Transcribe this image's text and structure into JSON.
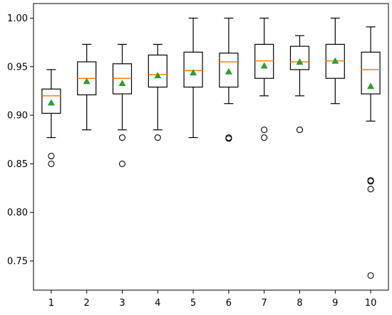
{
  "chart_data": {
    "type": "box",
    "title": "",
    "xlabel": "",
    "ylabel": "",
    "ylim": [
      0.72,
      1.015
    ],
    "grid": false,
    "yticks": [
      0.75,
      0.8,
      0.85,
      0.9,
      0.95,
      1.0
    ],
    "ytick_labels": [
      "0.75",
      "0.80",
      "0.85",
      "0.90",
      "0.95",
      "1.00"
    ],
    "categories": [
      "1",
      "2",
      "3",
      "4",
      "5",
      "6",
      "7",
      "8",
      "9",
      "10"
    ],
    "boxes": [
      {
        "whisker_low": 0.877,
        "q1": 0.902,
        "median": 0.92,
        "q3": 0.927,
        "whisker_high": 0.947,
        "mean": 0.913,
        "outliers": [
          0.858,
          0.85
        ]
      },
      {
        "whisker_low": 0.885,
        "q1": 0.921,
        "median": 0.938,
        "q3": 0.955,
        "whisker_high": 0.973,
        "mean": 0.935,
        "outliers": []
      },
      {
        "whisker_low": 0.885,
        "q1": 0.922,
        "median": 0.938,
        "q3": 0.953,
        "whisker_high": 0.973,
        "mean": 0.933,
        "outliers": [
          0.877,
          0.85
        ]
      },
      {
        "whisker_low": 0.885,
        "q1": 0.929,
        "median": 0.942,
        "q3": 0.962,
        "whisker_high": 0.973,
        "mean": 0.941,
        "outliers": [
          0.877
        ]
      },
      {
        "whisker_low": 0.877,
        "q1": 0.929,
        "median": 0.946,
        "q3": 0.965,
        "whisker_high": 1.0,
        "mean": 0.944,
        "outliers": []
      },
      {
        "whisker_low": 0.912,
        "q1": 0.929,
        "median": 0.955,
        "q3": 0.964,
        "whisker_high": 1.0,
        "mean": 0.945,
        "outliers": [
          0.877,
          0.876
        ]
      },
      {
        "whisker_low": 0.92,
        "q1": 0.938,
        "median": 0.956,
        "q3": 0.973,
        "whisker_high": 1.0,
        "mean": 0.951,
        "outliers": [
          0.885,
          0.877
        ]
      },
      {
        "whisker_low": 0.92,
        "q1": 0.947,
        "median": 0.955,
        "q3": 0.971,
        "whisker_high": 0.982,
        "mean": 0.955,
        "outliers": [
          0.885
        ]
      },
      {
        "whisker_low": 0.912,
        "q1": 0.938,
        "median": 0.956,
        "q3": 0.973,
        "whisker_high": 1.0,
        "mean": 0.956,
        "outliers": []
      },
      {
        "whisker_low": 0.894,
        "q1": 0.922,
        "median": 0.947,
        "q3": 0.965,
        "whisker_high": 0.991,
        "mean": 0.93,
        "outliers": [
          0.833,
          0.832,
          0.824,
          0.735
        ]
      }
    ],
    "colors": {
      "box": "#000000",
      "median": "#ff7f0e",
      "mean": "#2ca02c",
      "outlier": "#000000"
    }
  }
}
